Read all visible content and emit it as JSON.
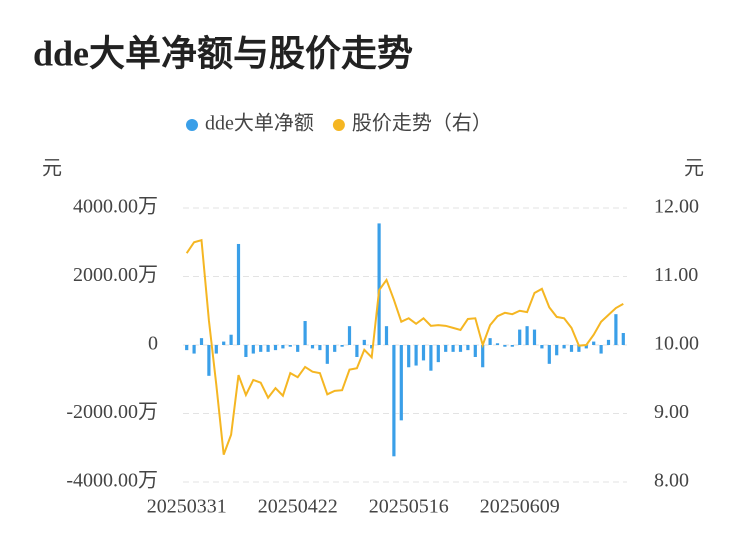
{
  "chart_data": {
    "type": "bar-line",
    "title": "dde大单净额与股价走势",
    "y_label": "元",
    "y2_label": "元",
    "categories": [
      "20250331",
      null,
      null,
      null,
      null,
      null,
      null,
      null,
      null,
      null,
      null,
      null,
      null,
      null,
      null,
      "20250422",
      null,
      null,
      null,
      null,
      null,
      null,
      null,
      null,
      null,
      null,
      null,
      null,
      null,
      null,
      "20250516",
      null,
      null,
      null,
      null,
      null,
      null,
      null,
      null,
      null,
      null,
      null,
      null,
      null,
      null,
      "20250609",
      null,
      null,
      null,
      null,
      null,
      null,
      null,
      null,
      null,
      null,
      null,
      null,
      null,
      null
    ],
    "ylim": [
      -4000,
      4000
    ],
    "yticks": [
      {
        "value": 4000,
        "label": "4000.00万"
      },
      {
        "value": 2000,
        "label": "2000.00万"
      },
      0,
      {
        "value": -2000,
        "label": "-2000.00万"
      },
      {
        "value": -4000,
        "label": "-4000.00万"
      }
    ],
    "y2lim": [
      8,
      12
    ],
    "y2ticks": [
      {
        "value": 12,
        "label": "12.00"
      },
      {
        "value": 11,
        "label": "11.00"
      },
      {
        "value": 10,
        "label": "10.00"
      },
      {
        "value": 9,
        "label": "9.00"
      },
      {
        "value": 8,
        "label": "8.00"
      }
    ],
    "grid": true,
    "legend": "top",
    "series": [
      {
        "name": "dde大单净额",
        "type": "bar",
        "color": "#3a9fe8",
        "values": [
          -150,
          -250,
          200,
          -900,
          -250,
          100,
          300,
          2950,
          -350,
          -250,
          -200,
          -200,
          -150,
          -100,
          -50,
          -200,
          700,
          -100,
          -150,
          -550,
          -200,
          -50,
          550,
          -350,
          150,
          -100,
          3550,
          550,
          -3250,
          -2200,
          -650,
          -600,
          -450,
          -750,
          -500,
          -200,
          -200,
          -200,
          -150,
          -350,
          -650,
          200,
          50,
          -50,
          -50,
          450,
          550,
          450,
          -100,
          -550,
          -300,
          -100,
          -200,
          -200,
          -100,
          100,
          -250,
          150,
          900,
          350
        ]
      },
      {
        "name": "股价走势（右）",
        "type": "line",
        "axis": "y2",
        "color": "#f5b622",
        "values": [
          11.34,
          11.5,
          11.53,
          10.36,
          9.42,
          8.4,
          8.69,
          9.56,
          9.27,
          9.49,
          9.45,
          9.23,
          9.37,
          9.26,
          9.59,
          9.53,
          9.68,
          9.61,
          9.59,
          9.28,
          9.33,
          9.34,
          9.64,
          9.66,
          9.93,
          9.82,
          10.8,
          10.95,
          10.66,
          10.34,
          10.39,
          10.31,
          10.39,
          10.28,
          10.29,
          10.28,
          10.25,
          10.22,
          10.38,
          10.39,
          10,
          10.29,
          10.42,
          10.47,
          10.45,
          10.5,
          10.48,
          10.76,
          10.82,
          10.55,
          10.41,
          10.39,
          10.25,
          9.99,
          10,
          10.15,
          10.34,
          10.44,
          10.54,
          10.6
        ]
      }
    ]
  }
}
